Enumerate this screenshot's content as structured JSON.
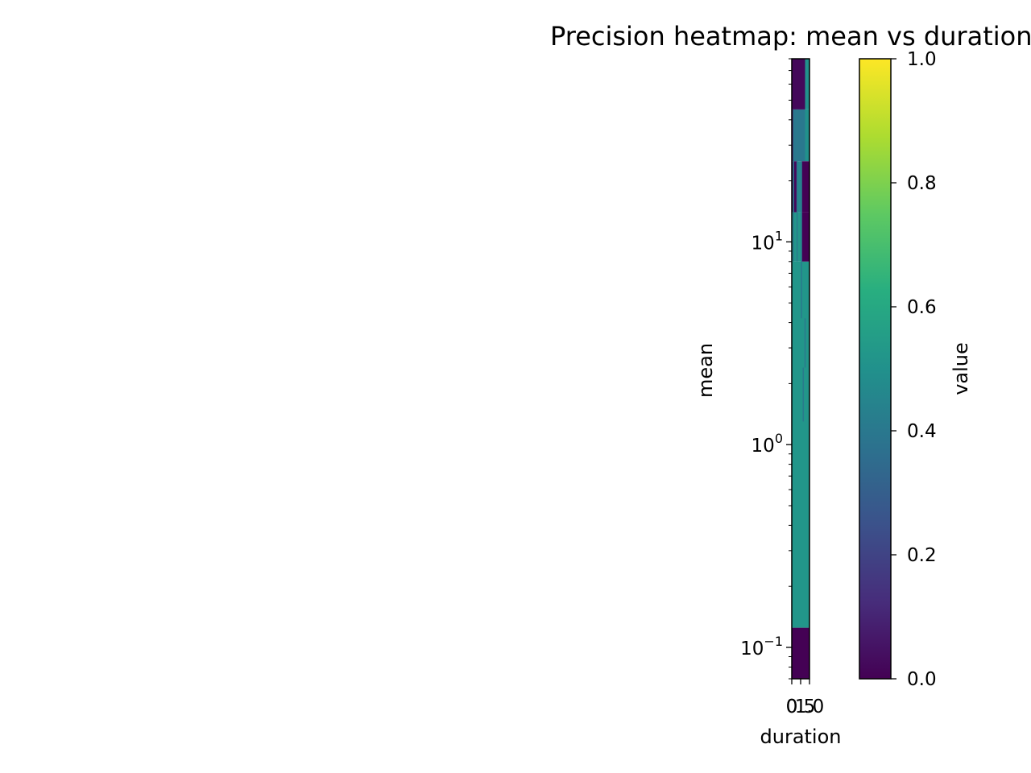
{
  "chart_data": {
    "type": "heatmap",
    "title": "Precision heatmap: mean vs duration",
    "xlabel": "duration",
    "ylabel": "mean",
    "colorbar_label": "value",
    "xlim": [
      0,
      1
    ],
    "ylim": [
      0.07,
      80
    ],
    "y_scale": "log",
    "x_tick_labels": [
      "0",
      "0.5",
      "1.0"
    ],
    "x_tick_values": [
      0,
      0.5,
      1
    ],
    "y_tick_labels": [
      {
        "base": "10",
        "exp": "−1",
        "value": 0.1
      },
      {
        "base": "10",
        "exp": "0",
        "value": 1
      },
      {
        "base": "10",
        "exp": "1",
        "value": 10
      }
    ],
    "colorbar": {
      "range": [
        0,
        1
      ],
      "ticks": [
        "0.0",
        "0.2",
        "0.4",
        "0.6",
        "0.8",
        "1.0"
      ],
      "tick_values": [
        0,
        0.2,
        0.4,
        0.6,
        0.8,
        1.0
      ],
      "colormap": "viridis"
    },
    "cells": [
      {
        "x0": 0,
        "x1": 1,
        "y0": 0.07,
        "y1": 0.125,
        "value": 0.0
      },
      {
        "x0": 0,
        "x1": 1,
        "y0": 0.125,
        "y1": 8.0,
        "value": 0.52
      },
      {
        "x0": 0,
        "x1": 0.55,
        "y0": 8.0,
        "y1": 14.0,
        "value": 0.52
      },
      {
        "x0": 0.55,
        "x1": 1,
        "y0": 8.0,
        "y1": 14.0,
        "value": 0.0
      },
      {
        "x0": 0,
        "x1": 0.3,
        "y0": 14.0,
        "y1": 25.0,
        "value": 0.02
      },
      {
        "x0": 0.3,
        "x1": 0.55,
        "y0": 14.0,
        "y1": 25.0,
        "value": 0.45
      },
      {
        "x0": 0.55,
        "x1": 1,
        "y0": 14.0,
        "y1": 25.0,
        "value": 0.0
      },
      {
        "x0": 0,
        "x1": 0.1,
        "y0": 25.0,
        "y1": 45.0,
        "value": 0.02
      },
      {
        "x0": 0.1,
        "x1": 0.75,
        "y0": 25.0,
        "y1": 45.0,
        "value": 0.4
      },
      {
        "x0": 0.75,
        "x1": 1,
        "y0": 25.0,
        "y1": 45.0,
        "value": 0.5
      },
      {
        "x0": 0,
        "x1": 0.75,
        "y0": 45.0,
        "y1": 80.0,
        "value": 0.02
      },
      {
        "x0": 0.75,
        "x1": 1,
        "y0": 45.0,
        "y1": 80.0,
        "value": 0.5
      }
    ],
    "contour_lines": [
      {
        "x": 0.1,
        "y0": 8.0,
        "y1": 45.0
      },
      {
        "x": 0.3,
        "y0": 8.0,
        "y1": 45.0
      },
      {
        "x": 0.55,
        "y0": 4.2,
        "y1": 25.0
      },
      {
        "x": 0.65,
        "y0": 1.3,
        "y1": 2.4
      },
      {
        "x": 0.75,
        "y0": 2.4,
        "y1": 4.2
      }
    ]
  }
}
